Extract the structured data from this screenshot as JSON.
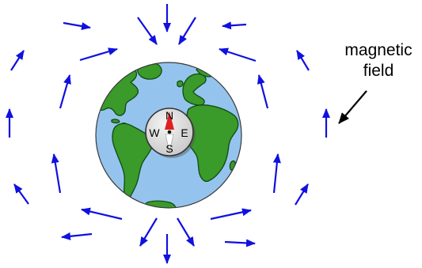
{
  "label": {
    "line1": "magnetic",
    "line2": "field"
  },
  "compass": {
    "north": "N",
    "south": "S",
    "east": "E",
    "west": "W"
  },
  "colors": {
    "field_arrow": "#1010e0",
    "ocean": "#94c4ee",
    "land": "#3a9a2a",
    "compass_needle_north": "#e02020",
    "compass_face": "#d8d8d8"
  }
}
